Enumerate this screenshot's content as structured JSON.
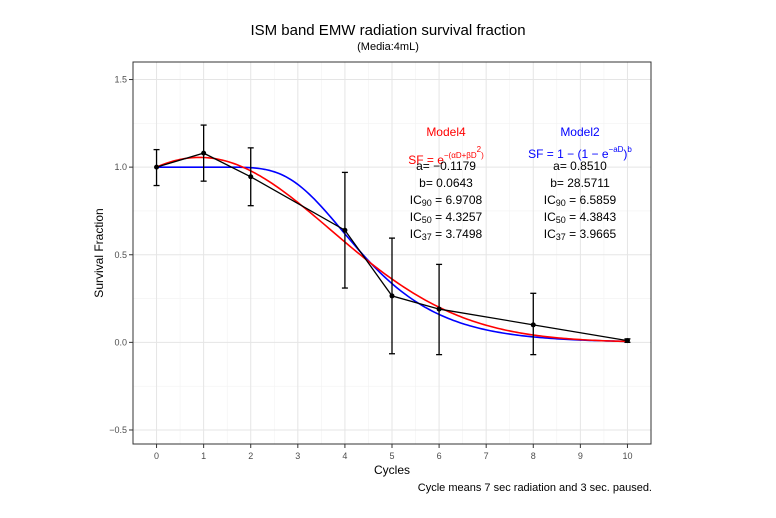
{
  "chart_data": {
    "type": "line",
    "title": "ISM band EMW radiation survival fraction",
    "subtitle": "(Media:4mL)",
    "xlabel": "Cycles",
    "ylabel": "Survival Fraction",
    "caption": "Cycle means 7 sec radiation and 3 sec. paused.",
    "xlim": [
      -0.5,
      10.5
    ],
    "ylim": [
      -0.58,
      1.6
    ],
    "x_ticks": [
      0,
      1,
      2,
      3,
      4,
      5,
      6,
      7,
      8,
      9,
      10
    ],
    "y_ticks": [
      -0.5,
      0.0,
      0.5,
      1.0,
      1.5
    ],
    "y_tick_labels": [
      "−0.5",
      "0.0",
      "0.5",
      "1.0",
      "1.5"
    ],
    "grid": true,
    "series": [
      {
        "name": "observed",
        "color": "#000000",
        "x": [
          0,
          1,
          2,
          4,
          5,
          6,
          8,
          10
        ],
        "values": [
          1.0,
          1.08,
          0.945,
          0.64,
          0.265,
          0.19,
          0.1,
          0.01
        ],
        "error_low": [
          0.895,
          0.92,
          0.78,
          0.31,
          -0.065,
          -0.07,
          -0.07,
          0.0
        ],
        "error_high": [
          1.1,
          1.24,
          1.11,
          0.97,
          0.595,
          0.445,
          0.28,
          0.02
        ]
      },
      {
        "name": "Model4",
        "color": "#ff0000",
        "model": "LQ",
        "params": {
          "a": -0.1179,
          "b": 0.0643
        }
      },
      {
        "name": "Model2",
        "color": "#0000ff",
        "model": "multi-target",
        "params": {
          "a": 0.851,
          "b": 28.5711
        }
      }
    ],
    "annotations": {
      "model4": {
        "name": "Model4",
        "formula_prefix": "SF = e",
        "formula_exp": "−(αD+βD",
        "formula_exp_sq": "2",
        "formula_exp_end": ")",
        "a": "a= −0.1179",
        "b": "b= 0.0643",
        "ic90_value": " = 6.9708",
        "ic50_value": " = 4.3257",
        "ic37_value": " = 3.7498"
      },
      "model2": {
        "name": "Model2",
        "formula_prefix": "SF = 1 − (1 − e",
        "formula_exp": "−aD",
        "formula_suffix": ")",
        "formula_power": "b",
        "a": "a= 0.8510",
        "b": "b= 28.5711",
        "ic90_value": " = 6.5859",
        "ic50_value": " = 4.3843",
        "ic37_value": " = 3.9665"
      },
      "ic_label": "IC",
      "ic90_sub": "90",
      "ic50_sub": "50",
      "ic37_sub": "37"
    }
  }
}
